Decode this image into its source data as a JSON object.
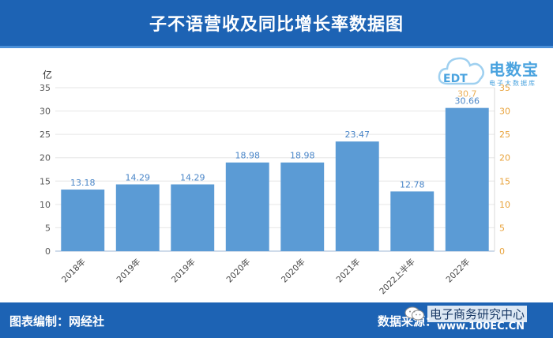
{
  "header": {
    "title": "子不语营收及同比增长率数据图"
  },
  "logo": {
    "brand": "电数宝",
    "tagline": "电子大数据库",
    "mark": "EDT"
  },
  "chart_data": {
    "type": "bar",
    "y_unit": "亿",
    "categories": [
      "2018年",
      "2019年",
      "2019年",
      "2020年",
      "2020年",
      "2021年",
      "2022上半年",
      "2022年"
    ],
    "values": [
      13.18,
      14.29,
      14.29,
      18.98,
      18.98,
      23.47,
      12.78,
      30.66
    ],
    "value_labels": [
      "13.18",
      "14.29",
      "14.29",
      "18.98",
      "18.98",
      "23.47",
      "12.78",
      "30.66"
    ],
    "ylim": [
      0,
      35
    ],
    "y_ticks": [
      0,
      5,
      10,
      15,
      20,
      25,
      30,
      35
    ],
    "y2_ticks": [
      0,
      5,
      10,
      15,
      20,
      25,
      30,
      35
    ],
    "y2_fragment_label": "30.7",
    "grid": true,
    "colors": {
      "bar": "#5b9bd5",
      "label": "#4a86c8",
      "right_axis": "#e8a23a"
    }
  },
  "footer": {
    "left": "图表编制：网经社",
    "right": "数据来源：",
    "wechat_name": "电子商务研究中心",
    "url": "www.100EC.CN"
  }
}
